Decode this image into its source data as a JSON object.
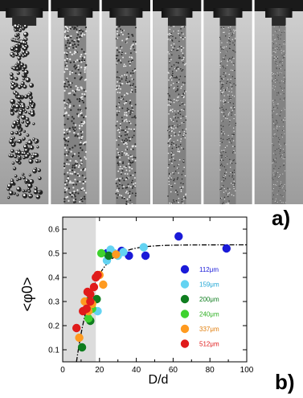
{
  "panel_labels": {
    "a": "a)",
    "b": "b)"
  },
  "photo_strip": {
    "count": 6
  },
  "chart_data": {
    "type": "scatter",
    "xlabel": "D/d",
    "ylabel": "<φ0>",
    "xlim": [
      0,
      100
    ],
    "ylim": [
      0.05,
      0.65
    ],
    "xticks": [
      0,
      20,
      40,
      60,
      80,
      100
    ],
    "yticks": [
      0.1,
      0.2,
      0.3,
      0.4,
      0.5,
      0.6
    ],
    "shaded_region": [
      0,
      18
    ],
    "fit_curve": {
      "plateau": 0.535,
      "rate": 0.11,
      "x0": 7.5
    },
    "legend_placement": "right",
    "series": [
      {
        "name": "112μm",
        "color": "#1a1ad8",
        "label_color": "#1a1ad8",
        "x": [
          36,
          45,
          63,
          89,
          24,
          32
        ],
        "y": [
          0.49,
          0.49,
          0.57,
          0.52,
          0.5,
          0.51
        ]
      },
      {
        "name": "159μm",
        "color": "#63d3f2",
        "label_color": "#1fa6d4",
        "x": [
          26,
          30,
          33,
          44,
          19,
          24,
          28
        ],
        "y": [
          0.515,
          0.49,
          0.505,
          0.525,
          0.26,
          0.47,
          0.5
        ]
      },
      {
        "name": "200μm",
        "color": "#0f7d1f",
        "label_color": "#0f7d1f",
        "x": [
          10.5,
          15,
          18.5,
          25,
          13.5
        ],
        "y": [
          0.11,
          0.22,
          0.31,
          0.49,
          0.3
        ]
      },
      {
        "name": "240μm",
        "color": "#3ed22e",
        "label_color": "#2fb022",
        "x": [
          21,
          14,
          16
        ],
        "y": [
          0.5,
          0.23,
          0.27
        ]
      },
      {
        "name": "337μm",
        "color": "#ff9a1f",
        "label_color": "#e07d0a",
        "x": [
          9,
          12,
          16,
          20,
          22,
          29,
          14
        ],
        "y": [
          0.15,
          0.3,
          0.29,
          0.41,
          0.37,
          0.495,
          0.26
        ]
      },
      {
        "name": "512μm",
        "color": "#e01b1b",
        "label_color": "#e01b1b",
        "x": [
          7.5,
          11,
          13,
          15,
          17,
          18,
          19,
          15,
          13.5
        ],
        "y": [
          0.19,
          0.26,
          0.27,
          0.33,
          0.36,
          0.4,
          0.41,
          0.3,
          0.34
        ]
      }
    ]
  }
}
